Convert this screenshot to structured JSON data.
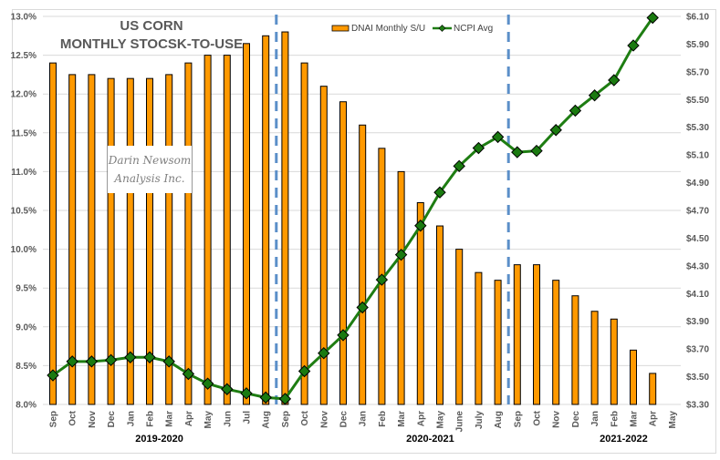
{
  "chart_data": {
    "type": "bar+line",
    "title": [
      "US CORN",
      "MONTHLY STOCSK-TO-USE"
    ],
    "watermark": [
      "Darin Newsom",
      "Analysis Inc."
    ],
    "categories": [
      "Sep",
      "Oct",
      "Nov",
      "Dec",
      "Jan",
      "Feb",
      "Mar",
      "Apr",
      "May",
      "Jun",
      "Jul",
      "Aug",
      "Sep",
      "Oct",
      "Nov",
      "Dec",
      "Jan",
      "Feb",
      "Mar",
      "Apr",
      "May",
      "June",
      "July",
      "Aug",
      "Sep",
      "Oct",
      "Nov",
      "Dec",
      "Jan",
      "Feb",
      "Mar",
      "Apr",
      "May"
    ],
    "season_labels": [
      {
        "label": "2019-2020",
        "center_index": 5.5
      },
      {
        "label": "2020-2021",
        "center_index": 19.5
      },
      {
        "label": "2021-2022",
        "center_index": 29.5
      }
    ],
    "season_dividers_after_index": [
      11.5,
      23.5
    ],
    "series": [
      {
        "name": "DNAI Monthly S/U",
        "type": "bar",
        "axis": "left",
        "color": "#ff9900",
        "values": [
          12.4,
          12.25,
          12.25,
          12.2,
          12.2,
          12.2,
          12.25,
          12.4,
          12.5,
          12.5,
          12.65,
          12.75,
          12.8,
          12.4,
          12.1,
          11.9,
          11.6,
          11.3,
          11.0,
          10.6,
          10.3,
          10.0,
          9.7,
          9.6,
          9.8,
          9.8,
          9.6,
          9.4,
          9.2,
          9.1,
          8.7,
          8.4,
          null
        ]
      },
      {
        "name": "NCPI Avg",
        "type": "line",
        "axis": "right",
        "color": "#1e7d12",
        "values": [
          3.51,
          3.61,
          3.61,
          3.62,
          3.64,
          3.64,
          3.61,
          3.52,
          3.45,
          3.41,
          3.38,
          3.35,
          3.34,
          3.54,
          3.67,
          3.8,
          4.0,
          4.2,
          4.38,
          4.59,
          4.83,
          5.02,
          5.15,
          5.23,
          5.12,
          5.13,
          5.28,
          5.42,
          5.53,
          5.64,
          5.89,
          6.09,
          null
        ]
      }
    ],
    "left_axis": {
      "ylim": [
        8.0,
        13.0
      ],
      "ticks": [
        "8.0%",
        "8.5%",
        "9.0%",
        "9.5%",
        "10.0%",
        "10.5%",
        "11.0%",
        "11.5%",
        "12.0%",
        "12.5%",
        "13.0%"
      ]
    },
    "right_axis": {
      "ylim": [
        3.3,
        6.1
      ],
      "ticks": [
        "$3.30",
        "$3.50",
        "$3.70",
        "$3.90",
        "$4.10",
        "$4.30",
        "$4.50",
        "$4.70",
        "$4.90",
        "$5.10",
        "$5.30",
        "$5.50",
        "$5.70",
        "$5.90",
        "$6.10"
      ]
    },
    "grid": true,
    "legend_position": "top-right"
  }
}
